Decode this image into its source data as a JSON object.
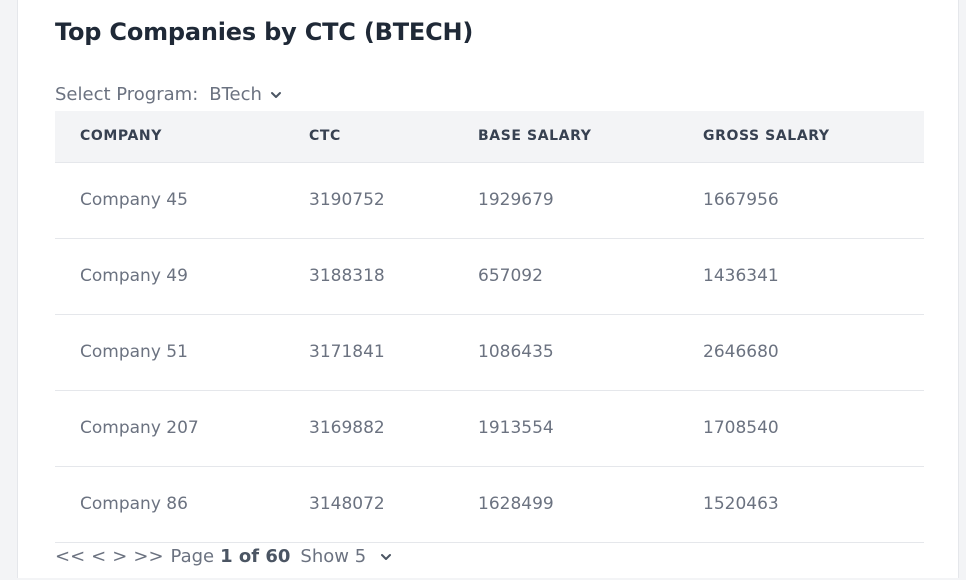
{
  "title": "Top Companies by CTC (BTECH)",
  "program": {
    "label": "Select Program:",
    "value": "BTech"
  },
  "table": {
    "headers": [
      "COMPANY",
      "CTC",
      "BASE SALARY",
      "GROSS SALARY"
    ],
    "rows": [
      [
        "Company 45",
        "3190752",
        "1929679",
        "1667956"
      ],
      [
        "Company 49",
        "3188318",
        "657092",
        "1436341"
      ],
      [
        "Company 51",
        "3171841",
        "1086435",
        "2646680"
      ],
      [
        "Company 207",
        "3169882",
        "1913554",
        "1708540"
      ],
      [
        "Company 86",
        "3148072",
        "1628499",
        "1520463"
      ]
    ]
  },
  "pagination": {
    "first": "<<",
    "prev": "<",
    "next": ">",
    "last": ">>",
    "page_label": "Page",
    "page_value": "1 of 60",
    "show_label": "Show 5"
  },
  "icons": {
    "program_dropdown": "chevron-down-icon",
    "show_dropdown": "chevron-down-icon"
  }
}
